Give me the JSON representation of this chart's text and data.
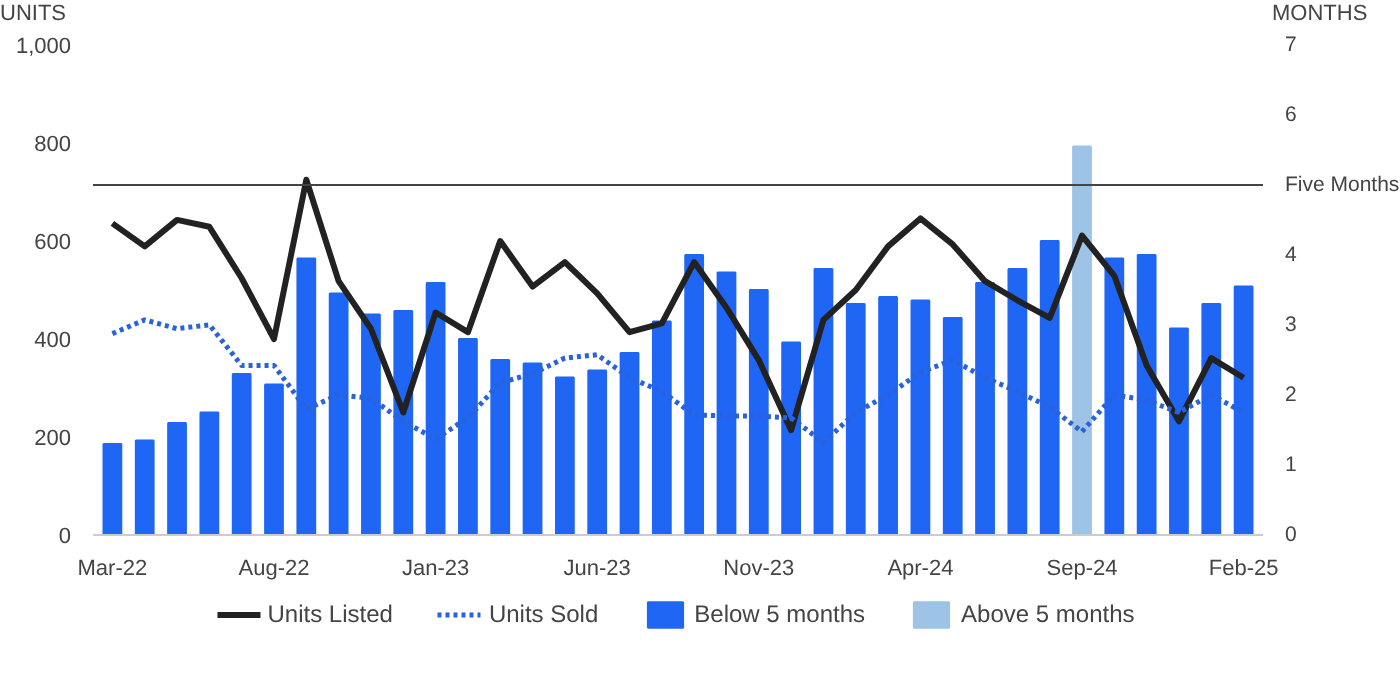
{
  "chart_data": {
    "type": "bar",
    "categories": [
      "Mar-22",
      null,
      null,
      null,
      null,
      "Aug-22",
      null,
      null,
      null,
      null,
      "Jan-23",
      null,
      null,
      null,
      null,
      "Jun-23",
      null,
      null,
      null,
      null,
      "Nov-23",
      null,
      null,
      null,
      null,
      "Apr-24",
      null,
      null,
      null,
      null,
      "Sep-24",
      null,
      null,
      null,
      null,
      "Feb-25"
    ],
    "ylabel": "UNITS",
    "y2label": "MONTHS",
    "ylim": [
      0,
      1000
    ],
    "yticks": [
      0,
      200,
      400,
      600,
      800,
      {
        "value": 1000,
        "label": "1,000"
      }
    ],
    "y2lim": [
      0,
      7
    ],
    "y2ticks": [
      0,
      1,
      2,
      3,
      4,
      6,
      7
    ],
    "series": [
      {
        "name": "Units Listed",
        "type": "line",
        "line_style": "solid",
        "color": "#222222",
        "values": [
          636,
          589,
          643,
          629,
          524,
          400,
          725,
          518,
          421,
          250,
          454,
          414,
          600,
          507,
          557,
          493,
          414,
          432,
          557,
          464,
          357,
          214,
          439,
          500,
          589,
          646,
          593,
          518,
          479,
          443,
          611,
          529,
          346,
          232,
          361,
          321
        ]
      },
      {
        "name": "Units Sold",
        "type": "line",
        "line_style": "dotted",
        "color": "#2a62d9",
        "values": [
          411,
          439,
          421,
          429,
          346,
          346,
          257,
          286,
          279,
          232,
          196,
          239,
          311,
          329,
          361,
          368,
          321,
          293,
          245,
          243,
          243,
          239,
          189,
          250,
          286,
          332,
          357,
          321,
          293,
          261,
          211,
          286,
          275,
          250,
          286,
          250
        ]
      },
      {
        "name": "Below 5 months",
        "axis": "y2",
        "color": "#1f66f5",
        "values": [
          1.3,
          1.35,
          1.6,
          1.75,
          2.3,
          2.15,
          3.95,
          3.45,
          3.15,
          3.2,
          3.6,
          2.8,
          2.5,
          2.45,
          2.25,
          2.35,
          2.6,
          3.05,
          4.0,
          3.75,
          3.5,
          2.75,
          3.8,
          3.3,
          3.4,
          3.35,
          3.1,
          3.6,
          3.8,
          4.2,
          null,
          3.95,
          4.0,
          2.95,
          3.3,
          3.55
        ]
      },
      {
        "name": "Above 5 months",
        "axis": "y2",
        "color": "#9dc3e6",
        "values": [
          null,
          null,
          null,
          null,
          null,
          null,
          null,
          null,
          null,
          null,
          null,
          null,
          null,
          null,
          null,
          null,
          null,
          null,
          null,
          null,
          null,
          null,
          null,
          null,
          null,
          null,
          null,
          null,
          null,
          null,
          5.55,
          null,
          null,
          null,
          null,
          null
        ]
      }
    ],
    "ref_lines": [
      {
        "axis": "y2",
        "value": 5,
        "label": "Five Months",
        "color": "#444444"
      }
    ],
    "grid": false,
    "legend": "bottom"
  }
}
